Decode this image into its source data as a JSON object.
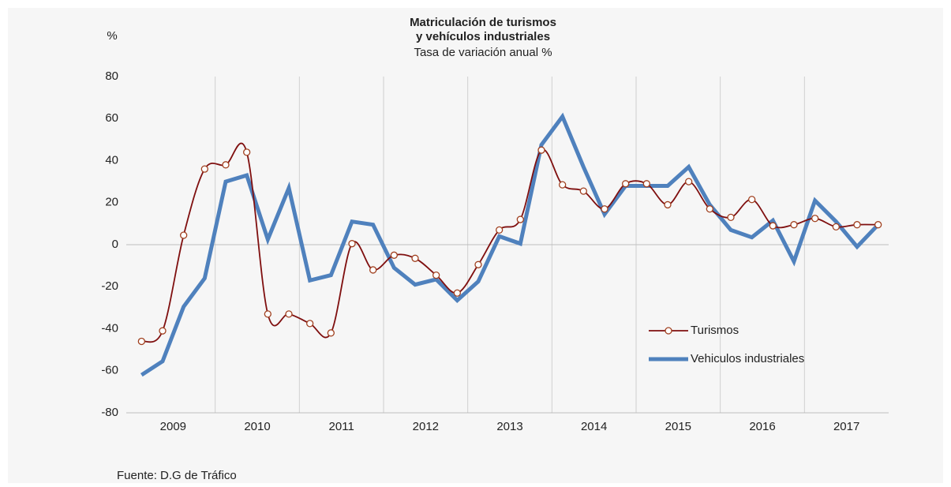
{
  "chart_data": {
    "type": "line",
    "title_lines": [
      "Matriculación de turismos",
      "y vehículos industriales"
    ],
    "subtitle": "Tasa de variación anual %",
    "y_unit": "%",
    "source": "Fuente: D.G de Tráfico",
    "year_labels": [
      "2009",
      "2010",
      "2011",
      "2012",
      "2013",
      "2014",
      "2015",
      "2016",
      "2017"
    ],
    "ylim": [
      -80,
      80
    ],
    "yticks": [
      -80,
      -60,
      -40,
      -20,
      0,
      20,
      40,
      60,
      80
    ],
    "series": [
      {
        "name": "Turismos",
        "color": "#7f0f0f",
        "marker": true,
        "values": [
          -46,
          -41,
          4.5,
          36,
          38,
          44,
          -33,
          -33,
          -37.5,
          -42,
          0.5,
          -12,
          -5,
          -6.5,
          -14.5,
          -23,
          -9.5,
          7,
          12,
          45,
          28.5,
          25.5,
          17,
          29,
          29,
          19,
          30,
          17,
          13,
          21.5,
          9,
          9.5,
          12.5,
          8.5,
          9.5,
          9.5
        ]
      },
      {
        "name": "Vehiculos industriales",
        "color": "#4f81bd",
        "marker": false,
        "values": [
          -62,
          -55.5,
          -29.5,
          -16,
          30,
          33,
          2.5,
          27,
          -17,
          -14.5,
          11,
          9.5,
          -11,
          -19,
          -16.5,
          -26.5,
          -17.5,
          4,
          0.5,
          47.5,
          61,
          37,
          14.5,
          28,
          28,
          28,
          37,
          19,
          7,
          3.5,
          11.5,
          -8,
          21,
          11,
          -1,
          9.5
        ]
      }
    ]
  }
}
